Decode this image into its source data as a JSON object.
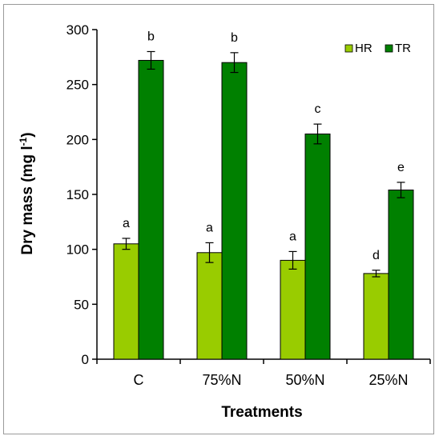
{
  "chart_data": {
    "type": "bar",
    "title": "",
    "xlabel": "Treatments",
    "ylabel": "Dry mass (mg l",
    "ylabel_sup": "-1",
    "ylabel_close": ")",
    "categories": [
      "C",
      "75%N",
      "50%N",
      "25%N"
    ],
    "ylim": [
      0,
      300
    ],
    "yticks": [
      0,
      50,
      100,
      150,
      200,
      250,
      300
    ],
    "grid": false,
    "legend_position": "top-right",
    "series": [
      {
        "name": "HR",
        "color": "#99cc00",
        "values": [
          105,
          97,
          90,
          78
        ],
        "errors": [
          5,
          9,
          8,
          3
        ],
        "labels": [
          "a",
          "a",
          "a",
          "d"
        ]
      },
      {
        "name": "TR",
        "color": "#008000",
        "values": [
          272,
          270,
          205,
          154
        ],
        "errors": [
          8,
          9,
          9,
          7
        ],
        "labels": [
          "b",
          "b",
          "c",
          "e"
        ]
      }
    ]
  }
}
